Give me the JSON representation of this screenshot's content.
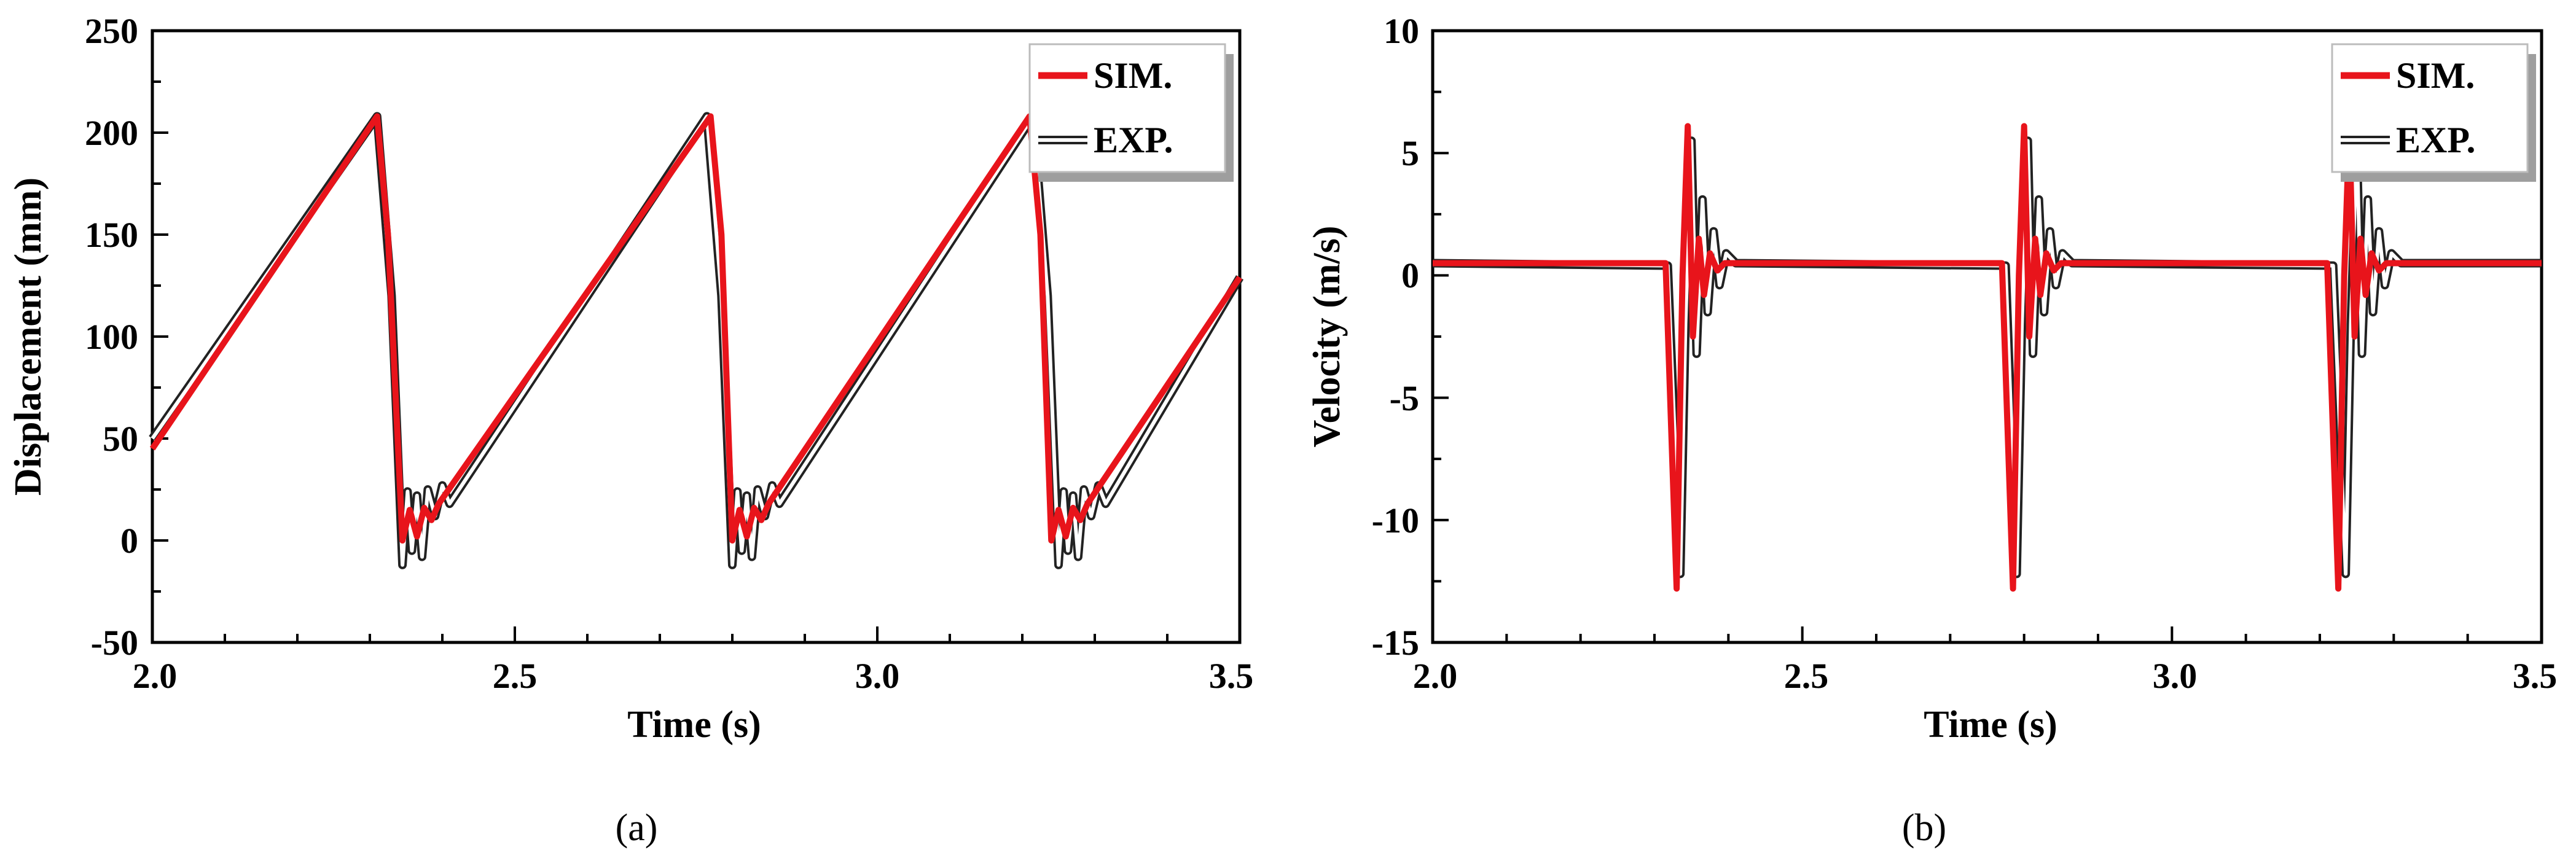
{
  "chart_data": [
    {
      "type": "line",
      "id": "a",
      "caption": "(a)",
      "xlabel": "Time (s)",
      "ylabel": "Displacement (mm)",
      "xlim": [
        2.0,
        3.5
      ],
      "ylim": [
        -50,
        250
      ],
      "xticks": [
        2.0,
        2.5,
        3.0,
        3.5
      ],
      "xtick_labels": [
        "2.0",
        "2.5",
        "3.0",
        "3.5"
      ],
      "yticks": [
        -50,
        0,
        50,
        100,
        150,
        200,
        250
      ],
      "ytick_labels": [
        "-50",
        "0",
        "50",
        "100",
        "150",
        "200",
        "250"
      ],
      "legend_position": "top-right",
      "series": [
        {
          "name": "SIM.",
          "color": "#e8141b",
          "x": [
            2.0,
            2.31,
            2.325,
            2.345,
            2.355,
            2.365,
            2.375,
            2.385,
            2.395,
            2.77,
            2.785,
            2.8,
            2.81,
            2.82,
            2.83,
            2.84,
            2.85,
            3.21,
            3.225,
            3.24,
            3.25,
            3.26,
            3.27,
            3.28,
            3.29,
            3.5
          ],
          "y": [
            45,
            208,
            150,
            0,
            15,
            2,
            16,
            10,
            18,
            208,
            150,
            0,
            15,
            2,
            16,
            10,
            18,
            208,
            150,
            0,
            15,
            2,
            16,
            10,
            18,
            129
          ]
        },
        {
          "name": "EXP.",
          "color": "#222222",
          "x": [
            2.0,
            2.31,
            2.33,
            2.345,
            2.352,
            2.358,
            2.365,
            2.372,
            2.38,
            2.39,
            2.4,
            2.41,
            2.765,
            2.785,
            2.8,
            2.807,
            2.813,
            2.82,
            2.827,
            2.835,
            2.845,
            2.855,
            2.865,
            3.215,
            3.235,
            3.25,
            3.257,
            3.263,
            3.27,
            3.277,
            3.285,
            3.295,
            3.305,
            3.315,
            3.5
          ],
          "y": [
            50,
            208,
            120,
            -12,
            24,
            -5,
            22,
            -8,
            25,
            12,
            27,
            18,
            208,
            120,
            -12,
            24,
            -5,
            22,
            -8,
            25,
            12,
            27,
            18,
            208,
            120,
            -12,
            24,
            -5,
            22,
            -8,
            25,
            12,
            27,
            18,
            129
          ]
        }
      ]
    },
    {
      "type": "line",
      "id": "b",
      "caption": "(b)",
      "xlabel": "Time (s)",
      "ylabel": "Velocity (m/s)",
      "xlim": [
        2.0,
        3.5
      ],
      "ylim": [
        -15,
        10
      ],
      "xticks": [
        2.0,
        2.5,
        3.0,
        3.5
      ],
      "xtick_labels": [
        "2.0",
        "2.5",
        "3.0",
        "3.5"
      ],
      "yticks": [
        -15,
        -10,
        -5,
        0,
        5,
        10
      ],
      "ytick_labels": [
        "-15",
        "-10",
        "-5",
        "0",
        "5",
        "10"
      ],
      "legend_position": "top-right",
      "series": [
        {
          "name": "SIM.",
          "color": "#e8141b",
          "x": [
            2.0,
            2.315,
            2.33,
            2.338,
            2.345,
            2.352,
            2.36,
            2.367,
            2.375,
            2.385,
            2.395,
            2.77,
            2.785,
            2.793,
            2.8,
            2.807,
            2.815,
            2.822,
            2.83,
            2.84,
            2.85,
            3.21,
            3.225,
            3.233,
            3.24,
            3.247,
            3.255,
            3.262,
            3.27,
            3.28,
            3.29,
            3.5
          ],
          "y": [
            0.5,
            0.5,
            -12.8,
            0,
            6.1,
            -2.5,
            1.5,
            -0.8,
            0.9,
            0.2,
            0.5,
            0.5,
            -12.8,
            0,
            6.1,
            -2.5,
            1.5,
            -0.8,
            0.9,
            0.2,
            0.5,
            0.5,
            -12.8,
            0,
            6.1,
            -2.5,
            1.5,
            -0.8,
            0.9,
            0.2,
            0.5,
            0.5
          ]
        },
        {
          "name": "EXP.",
          "color": "#222222",
          "x": [
            2.0,
            2.318,
            2.335,
            2.342,
            2.35,
            2.357,
            2.365,
            2.372,
            2.38,
            2.388,
            2.397,
            2.41,
            2.775,
            2.79,
            2.797,
            2.805,
            2.812,
            2.82,
            2.827,
            2.835,
            2.843,
            2.852,
            2.865,
            3.218,
            3.235,
            3.242,
            3.25,
            3.257,
            3.265,
            3.272,
            3.28,
            3.288,
            3.297,
            3.31,
            3.5
          ],
          "y": [
            0.5,
            0.4,
            -12.2,
            -2,
            5.5,
            -3.2,
            3.1,
            -1.5,
            1.8,
            -0.4,
            0.9,
            0.5,
            0.4,
            -12.2,
            -2,
            5.5,
            -3.2,
            3.1,
            -1.5,
            1.8,
            -0.4,
            0.9,
            0.5,
            0.4,
            -12.2,
            -2,
            5.5,
            -3.2,
            3.1,
            -1.5,
            1.8,
            -0.4,
            0.9,
            0.5,
            0.5
          ]
        }
      ]
    }
  ]
}
